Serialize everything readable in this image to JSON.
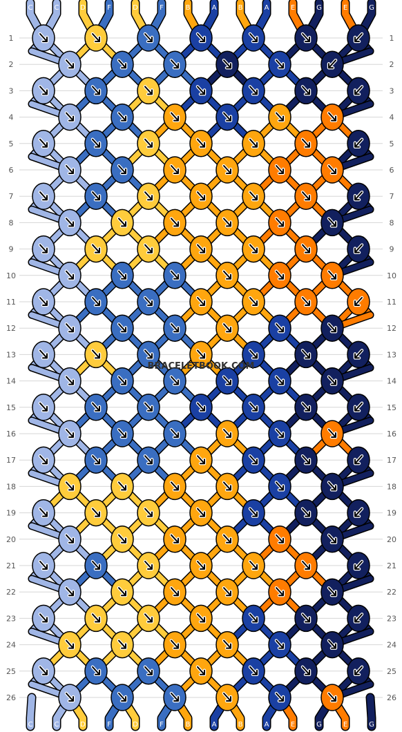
{
  "watermark": "BRACELETBOOK.COM",
  "colors": {
    "A": "#1a40a3",
    "B": "#ffa60f",
    "C": "#a0b6e6",
    "D": "#ffcc3c",
    "E": "#ff7c00",
    "F": "#3a6ec1",
    "G": "#12205e"
  },
  "top_strands": [
    "C",
    "C",
    "D",
    "F",
    "D",
    "F",
    "B",
    "A",
    "B",
    "A",
    "E",
    "G",
    "E",
    "G"
  ],
  "bottom_strands": [
    "C",
    "C",
    "D",
    "F",
    "D",
    "F",
    "B",
    "A",
    "B",
    "A",
    "E",
    "G",
    "E",
    "G"
  ],
  "row_numbers": [
    "1",
    "2",
    "3",
    "4",
    "5",
    "6",
    "7",
    "8",
    "9",
    "10",
    "11",
    "12",
    "13",
    "14",
    "15",
    "16",
    "17",
    "18",
    "19",
    "20",
    "21",
    "22",
    "23",
    "24",
    "25",
    "26"
  ],
  "knot_colors": [
    "CDFAAGG",
    "CFFGAG",
    "CFDAAGG",
    "CFBABE",
    "CFDBBEG",
    "CFBBEE",
    "CFDBBEG",
    "CDBBEG",
    "CDDBBEG",
    "CFFBEE",
    "CFFBBEE",
    "CFFBAG",
    "CDFBAGG",
    "CFFAAG",
    "CFFAAGG",
    "CFFBAE",
    "CFFBAGG",
    "DDBBAG",
    "CDDBAGG",
    "CDBBEG",
    "CFDBBEG",
    "CDBBEG",
    "CDDBAGG",
    "DDBBAG",
    "CFFBAGG",
    "CFFBAE"
  ],
  "knot_arrows": [
    "FFFFFFB",
    "FFFFFB",
    "FFFFFFB",
    "FFFFFF",
    "FFFFFFB",
    "FFFFFF",
    "FFFFFFB",
    "FFFFFF",
    "FFFFFFB",
    "FFFFFF",
    "FFFFFFB",
    "FFFFFF",
    "FFFFFFB",
    "FFFFFF",
    "FFFFFFB",
    "FFFFFF",
    "FFFFFFB",
    "FFFFFF",
    "FFFFFFB",
    "FFFFFF",
    "FFFFFFB",
    "FFFFFF",
    "FFFFFFB",
    "FFFFFF",
    "FFFFFFB",
    "FFFFFF"
  ]
}
